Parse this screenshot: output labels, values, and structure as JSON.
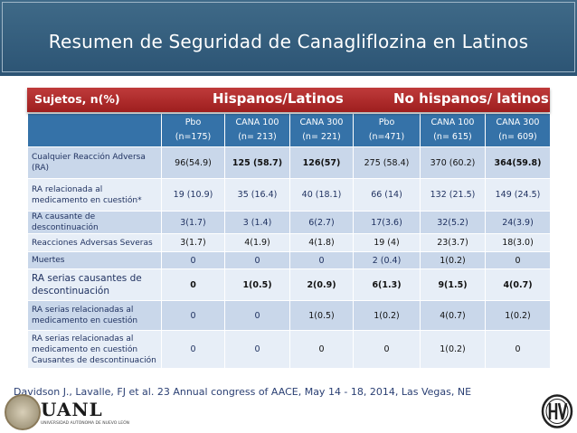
{
  "slide": {
    "title": "Resumen de Seguridad de Canagliflozina en Latinos"
  },
  "table": {
    "group_header": {
      "subjects": "Sujetos, n(%)",
      "hispanic": "Hispanos/Latinos",
      "non_hispanic": "No hispanos/ latinos"
    },
    "columns": [
      {
        "arm": "Pbo",
        "n": "(n=175)"
      },
      {
        "arm": "CANA 100",
        "n": "(n= 213)"
      },
      {
        "arm": "CANA 300",
        "n": "(n= 221)"
      },
      {
        "arm": "Pbo",
        "n": "(n=471)"
      },
      {
        "arm": "CANA 100",
        "n": "(n= 615)"
      },
      {
        "arm": "CANA 300",
        "n": "(n= 609)"
      }
    ],
    "rows": [
      {
        "label": "Cualquier Reacción Adversa (RA)",
        "values": [
          "96(54.9)",
          "125 (58.7)",
          "126(57)",
          "275 (58.4)",
          "370 (60.2)",
          "364(59.8)"
        ]
      },
      {
        "label": "RA relacionada al medicamento en cuestión*",
        "values": [
          "19 (10.9)",
          "35 (16.4)",
          "40 (18.1)",
          "66 (14)",
          "132 (21.5)",
          "149 (24.5)"
        ]
      },
      {
        "label": "RA causante de descontinuación",
        "values": [
          "3(1.7)",
          "3 (1.4)",
          "6(2.7)",
          "17(3.6)",
          "32(5.2)",
          "24(3.9)"
        ]
      },
      {
        "label": "Reacciones Adversas Severas",
        "values": [
          "3(1.7)",
          "4(1.9)",
          "4(1.8)",
          "19 (4)",
          "23(3.7)",
          "18(3.0)"
        ]
      },
      {
        "label": "Muertes",
        "values": [
          "0",
          "0",
          "0",
          "2 (0.4)",
          "1(0.2)",
          "0"
        ]
      },
      {
        "label": "RA serias causantes de descontinuación",
        "values": [
          "0",
          "1(0.5)",
          "2(0.9)",
          "6(1.3)",
          "9(1.5)",
          "4(0.7)"
        ]
      },
      {
        "label": "RA serias relacionadas al medicamento en cuestión",
        "values": [
          "0",
          "0",
          "1(0.5)",
          "1(0.2)",
          "4(0.7)",
          "1(0.2)"
        ]
      },
      {
        "label": "RA serias relacionadas al medicamento en cuestión Causantes de descontinuación",
        "values": [
          "0",
          "0",
          "0",
          "0",
          "1(0.2)",
          "0"
        ]
      }
    ]
  },
  "citation": "Davidson J., Lavalle, FJ et al. 23 Annual congress of AACE, May 14 - 18, 2014, Las Vegas, NE",
  "footer": {
    "university": "UANL",
    "university_sub": "UNIVERSIDAD AUTÓNOMA DE NUEVO LEÓN"
  }
}
